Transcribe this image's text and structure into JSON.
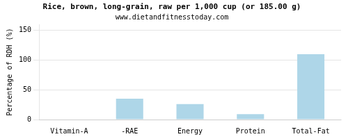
{
  "chart_data": {
    "type": "bar",
    "title": "Rice, brown, long-grain, raw per 1,000 cup (or 185.00 g)",
    "subtitle": "www.dietandfitnesstoday.com",
    "categories": [
      "Vitamin-A",
      "-RAE",
      "Energy",
      "Protein",
      "Total-Fat"
    ],
    "values": [
      0.5,
      35,
      26,
      9,
      110
    ],
    "color": "#aed6e8",
    "ylabel": "Percentage of RDH (%)",
    "ylim": [
      0,
      160
    ],
    "yticks": [
      0,
      50,
      100,
      150
    ],
    "grid": true
  }
}
